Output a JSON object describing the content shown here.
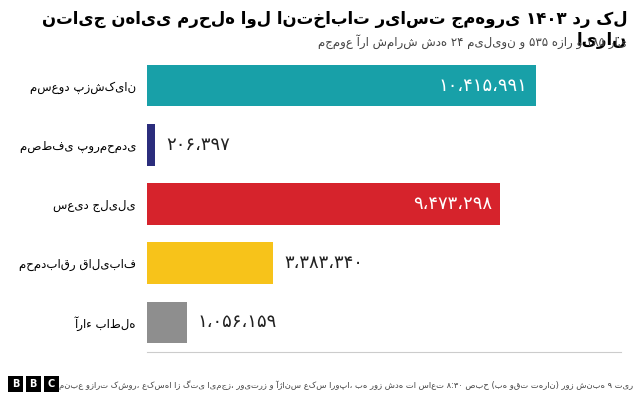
{
  "chart_data": {
    "type": "bar",
    "orientation": "horizontal",
    "title": "نتایج نهایی مرحله اول انتخابات ریاست جمهوری ۱۴۰۳ در کل ایران",
    "subtitle": "مجموع آرا شمارش شده ۲۴ میلیون و ۵۳۵ هزار و ۱۸۵ رای",
    "source": "منبع وزارت کشور، عکس‌ها از گتی ایمجز، رویترز و آژانس عکس اروپا، به روز شده تا ساعت ۸:۳۰ صبح (به وقت تهران) روز شنبه ۹ تیر",
    "logo": "BBC",
    "categories": [
      "مسعود پزشکیان",
      "مصطفی پورمحمدی",
      "سعید جلیلی",
      "محمدباقر قالیباف",
      "آراء باطله"
    ],
    "values": [
      10415991,
      206397,
      9473298,
      3383340,
      1056159
    ],
    "value_labels": [
      "۱۰،۴۱۵،۹۹۱",
      "۲۰۶،۳۹۷",
      "۹،۴۷۳،۲۹۸",
      "۳،۳۸۳،۳۴۰",
      "۱،۰۵۶،۱۵۹"
    ],
    "colors": [
      "#18a0a8",
      "#2b2d7c",
      "#d6232c",
      "#f7c31a",
      "#8e8e8e"
    ],
    "xlim": [
      0,
      12700000
    ],
    "data_labels": true,
    "tick_labels": "y"
  }
}
